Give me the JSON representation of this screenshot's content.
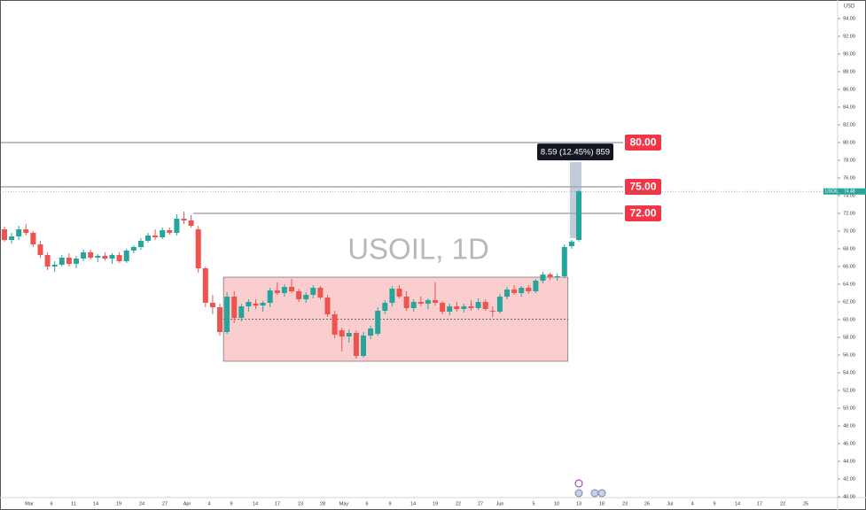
{
  "chart_data": {
    "type": "candlestick",
    "title": "USOIL, 1D",
    "currency": "USD",
    "symbol": "USOIL",
    "last_price": 74.48,
    "up_color": "#26a69a",
    "down_color": "#ef5350",
    "ylim": [
      39,
      96
    ],
    "yticks": [
      {
        "value": 94,
        "label": "94.00"
      },
      {
        "value": 92,
        "label": "92.00"
      },
      {
        "value": 90,
        "label": "90.00"
      },
      {
        "value": 88,
        "label": "88.00"
      },
      {
        "value": 86,
        "label": "86.00"
      },
      {
        "value": 84,
        "label": "84.00"
      },
      {
        "value": 82,
        "label": "82.00"
      },
      {
        "value": 80,
        "label": "80.00"
      },
      {
        "value": 78,
        "label": "78.00"
      },
      {
        "value": 76,
        "label": "76.00"
      },
      {
        "value": 74,
        "label": "74.00"
      },
      {
        "value": 72,
        "label": "72.00"
      },
      {
        "value": 70,
        "label": "70.00"
      },
      {
        "value": 68,
        "label": "68.00"
      },
      {
        "value": 66,
        "label": "66.00"
      },
      {
        "value": 64,
        "label": "64.00"
      },
      {
        "value": 62,
        "label": "62.00"
      },
      {
        "value": 60,
        "label": "60.00"
      },
      {
        "value": 58,
        "label": "58.00"
      },
      {
        "value": 56,
        "label": "56.00"
      },
      {
        "value": 54,
        "label": "54.00"
      },
      {
        "value": 52,
        "label": "52.00"
      },
      {
        "value": 50,
        "label": "50.00"
      },
      {
        "value": 48,
        "label": "48.00"
      },
      {
        "value": 46,
        "label": "46.00"
      },
      {
        "value": 44,
        "label": "44.00"
      },
      {
        "value": 42,
        "label": "42.00"
      },
      {
        "value": 40,
        "label": "40.00"
      }
    ],
    "x_labels": [
      "Mar",
      "6",
      "11",
      "14",
      "19",
      "24",
      "27",
      "Apr",
      "4",
      "9",
      "14",
      "17",
      "23",
      "28",
      "May",
      "6",
      "9",
      "14",
      "19",
      "22",
      "27",
      "Jun",
      "5",
      "10",
      "13",
      "18",
      "23",
      "26",
      "Jul",
      "4",
      "9",
      "14",
      "17",
      "22",
      "25"
    ],
    "candles": {
      "open": [
        70.2,
        69.0,
        69.4,
        70.2,
        69.8,
        68.5,
        67.3,
        66.0,
        66.2,
        67.0,
        66.3,
        66.9,
        67.6,
        67.0,
        67.2,
        66.9,
        67.3,
        66.6,
        67.8,
        68.2,
        68.9,
        69.5,
        69.3,
        70.1,
        69.8,
        71.4,
        71.2,
        70.2,
        65.8,
        61.9,
        61.4,
        58.6,
        62.6,
        60.2,
        61.5,
        61.8,
        61.6,
        61.9,
        63.3,
        63.0,
        63.7,
        63.2,
        62.3,
        62.8,
        63.6,
        62.5,
        60.6,
        58.8,
        58.1,
        58.5,
        55.9,
        58.2,
        58.4,
        61.0,
        61.9,
        63.5,
        62.6,
        61.3,
        62.0,
        61.8,
        62.2,
        61.9,
        60.9,
        61.5,
        61.2,
        61.5,
        61.3,
        62.0,
        61.0,
        60.9,
        62.6,
        63.4,
        63.0,
        63.6,
        63.2,
        64.4,
        65.1,
        64.8,
        64.9,
        68.3,
        69.0
      ],
      "high": [
        70.5,
        69.8,
        70.6,
        70.8,
        70.0,
        68.9,
        67.6,
        66.6,
        67.3,
        67.5,
        67.2,
        67.9,
        67.9,
        67.4,
        67.6,
        67.5,
        67.6,
        68.0,
        68.4,
        69.2,
        69.8,
        70.2,
        70.4,
        70.4,
        71.9,
        72.2,
        71.8,
        70.6,
        66.0,
        62.8,
        61.8,
        63.1,
        63.2,
        61.8,
        62.3,
        62.3,
        62.1,
        63.6,
        64.2,
        64.0,
        64.6,
        63.5,
        63.1,
        63.9,
        63.8,
        62.8,
        61.0,
        59.1,
        58.9,
        58.8,
        58.6,
        59.3,
        61.4,
        62.2,
        63.8,
        63.9,
        63.2,
        62.3,
        62.6,
        62.4,
        64.2,
        62.1,
        61.8,
        62.0,
        61.8,
        62.2,
        62.4,
        62.3,
        61.5,
        62.9,
        63.7,
        63.9,
        63.8,
        63.9,
        64.6,
        65.4,
        65.3,
        65.2,
        68.5,
        69.0,
        74.6
      ],
      "low": [
        68.8,
        68.6,
        69.0,
        69.5,
        68.2,
        67.0,
        65.6,
        65.4,
        66.0,
        66.0,
        65.8,
        66.6,
        66.8,
        66.5,
        66.7,
        66.3,
        66.4,
        66.4,
        67.5,
        67.9,
        68.7,
        69.0,
        69.1,
        69.6,
        69.5,
        70.8,
        70.4,
        65.3,
        61.4,
        60.6,
        58.2,
        58.4,
        59.6,
        59.8,
        60.9,
        61.2,
        60.9,
        61.4,
        62.8,
        62.6,
        63.0,
        62.0,
        61.9,
        62.4,
        62.3,
        60.3,
        57.9,
        56.4,
        57.4,
        55.6,
        55.7,
        57.8,
        58.2,
        60.6,
        61.5,
        62.4,
        61.0,
        60.9,
        61.5,
        61.2,
        61.6,
        60.6,
        60.5,
        60.9,
        60.8,
        61.0,
        61.1,
        61.0,
        60.3,
        60.7,
        62.3,
        62.8,
        62.6,
        62.9,
        63.0,
        64.1,
        64.5,
        64.4,
        64.7,
        68.0,
        68.8
      ],
      "close": [
        69.0,
        69.4,
        70.2,
        69.8,
        68.5,
        67.3,
        66.0,
        66.2,
        67.0,
        66.3,
        66.9,
        67.6,
        67.0,
        67.2,
        66.9,
        67.3,
        66.6,
        67.8,
        68.2,
        68.9,
        69.5,
        69.3,
        70.1,
        69.8,
        71.4,
        71.2,
        70.6,
        65.8,
        61.9,
        61.4,
        58.6,
        62.6,
        60.2,
        61.5,
        62.0,
        61.6,
        61.9,
        63.3,
        63.0,
        63.7,
        63.2,
        62.3,
        62.8,
        63.6,
        62.5,
        60.6,
        58.3,
        58.1,
        58.5,
        55.9,
        58.2,
        59.0,
        61.0,
        61.9,
        63.5,
        62.6,
        61.3,
        62.0,
        61.8,
        62.2,
        61.9,
        60.9,
        61.5,
        61.2,
        61.5,
        61.3,
        62.0,
        61.2,
        60.9,
        62.6,
        63.4,
        63.0,
        63.6,
        63.2,
        64.4,
        65.1,
        64.8,
        64.9,
        68.2,
        68.8,
        74.48
      ]
    },
    "levels": [
      {
        "value": 80,
        "label": "80.00"
      },
      {
        "value": 75,
        "label": "75.00"
      },
      {
        "value": 72,
        "label": "72.00"
      }
    ],
    "level_color": "#f23645",
    "range_box": {
      "top": 64.8,
      "bottom": 55.3,
      "mid": 60.05,
      "color": "#f9c9c9"
    },
    "measure": {
      "label": "8.59 (12.45%) 859",
      "from": 69.2,
      "to": 77.79
    }
  }
}
